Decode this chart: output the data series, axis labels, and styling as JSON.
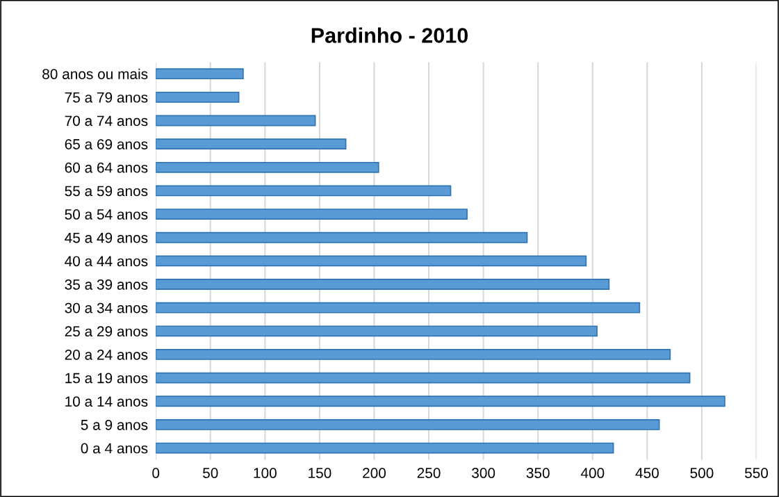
{
  "chart_data": {
    "type": "bar",
    "orientation": "horizontal",
    "title": "Pardinho - 2010",
    "categories": [
      "80 anos ou mais",
      "75 a 79 anos",
      "70 a 74 anos",
      "65 a 69 anos",
      "60 a 64 anos",
      "55 a 59 anos",
      "50 a 54 anos",
      "45 a 49 anos",
      "40 a 44 anos",
      "35 a 39 anos",
      "30 a 34 anos",
      "25 a 29 anos",
      "20 a 24 anos",
      "15 a 19 anos",
      "10 a 14 anos",
      "5 a 9 anos",
      "0 a 4 anos"
    ],
    "values": [
      80,
      76,
      146,
      174,
      204,
      270,
      285,
      340,
      394,
      415,
      443,
      404,
      471,
      489,
      521,
      461,
      419
    ],
    "color": "#5b9bd5",
    "xlim": [
      0,
      550
    ],
    "xticks": [
      0,
      50,
      100,
      150,
      200,
      250,
      300,
      350,
      400,
      450,
      500,
      550
    ],
    "grid": "x",
    "legend": false
  }
}
